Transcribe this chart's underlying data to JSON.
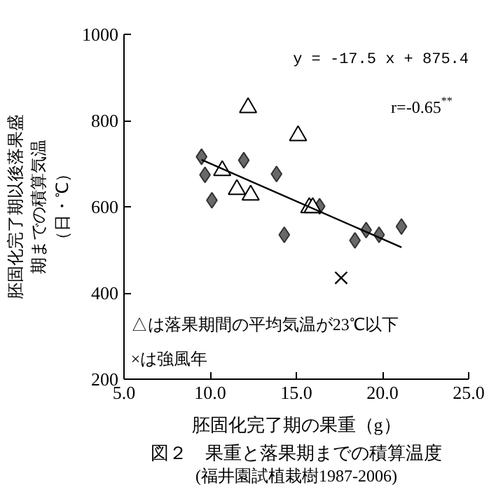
{
  "chart_data": {
    "type": "scatter",
    "title": "図２　果重と落果期までの積算温度",
    "subtitle": "(福井園試植栽樹1987-2006)",
    "xlabel": "胚固化完了期の果重（g）",
    "ylabel": "胚固化完了期以後落果盛期までの積算気温（日・℃）",
    "xlim": [
      5,
      25
    ],
    "ylim": [
      200,
      1000
    ],
    "xticks": [
      {
        "value": 5,
        "label": "5.0"
      },
      {
        "value": 10,
        "label": "10.0"
      },
      {
        "value": 15,
        "label": "15.0"
      },
      {
        "value": 20,
        "label": "20.0"
      },
      {
        "value": 25,
        "label": "25.0"
      }
    ],
    "yticks": [
      200,
      400,
      600,
      800,
      1000
    ],
    "grid": false,
    "annotations": [
      "y = -17.5 x + 875.4",
      "r=-0.65$^{**}$",
      "△は落果期間の平均気温が23℃以下",
      "×は強風年"
    ],
    "series": [
      {
        "marker": "diamond",
        "color": "#696969",
        "x": [
          9.5,
          9.7,
          10.1,
          11.95,
          13.85,
          14.3,
          16.35,
          18.4,
          19.05,
          19.8,
          21.1
        ],
        "values": [
          716,
          674,
          615,
          708,
          676,
          535,
          601,
          522,
          546,
          535,
          554
        ]
      },
      {
        "marker": "triangle",
        "color": "#ffffff",
        "x": [
          12.2,
          15.1,
          10.7,
          11.55,
          12.35,
          15.75,
          15.95
        ],
        "values": [
          830,
          765,
          684,
          640,
          627,
          598,
          598
        ]
      },
      {
        "marker": "cross",
        "color": "#000000",
        "x": [
          17.6
        ],
        "values": [
          435
        ]
      },
      {
        "type": "line",
        "color": "#000000",
        "x": [
          9.5,
          21.1
        ],
        "values": [
          709,
          506
        ]
      }
    ]
  }
}
